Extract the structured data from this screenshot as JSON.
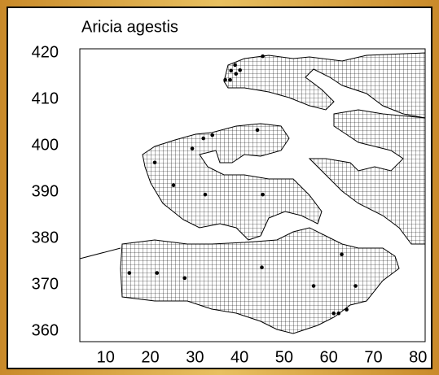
{
  "chart_data": {
    "type": "scatter",
    "title": "Aricia agestis",
    "x": [
      45.2,
      39.0,
      38.1,
      39.2,
      40.1,
      36.8,
      37.9,
      33.9,
      31.9,
      44.0,
      29.4,
      21.0,
      25.2,
      32.3,
      45.2,
      62.9,
      45.0,
      15.3,
      21.5,
      27.7,
      56.6,
      66.0,
      61.1,
      62.2,
      64.0
    ],
    "values": [
      419.3,
      417.4,
      416.2,
      415.5,
      416.3,
      414.2,
      414.2,
      402.3,
      401.6,
      403.4,
      399.4,
      396.4,
      391.5,
      389.5,
      389.5,
      376.6,
      373.8,
      372.6,
      372.6,
      371.5,
      369.8,
      369.8,
      363.9,
      363.9,
      364.7
    ],
    "color": "#000000",
    "xlim": [
      4.2,
      81.6
    ],
    "ylim": [
      357.8,
      420.9
    ],
    "xticks": [
      10,
      20,
      30,
      40,
      50,
      60,
      70,
      80
    ],
    "yticks": [
      360,
      370,
      380,
      390,
      400,
      410,
      420
    ]
  }
}
